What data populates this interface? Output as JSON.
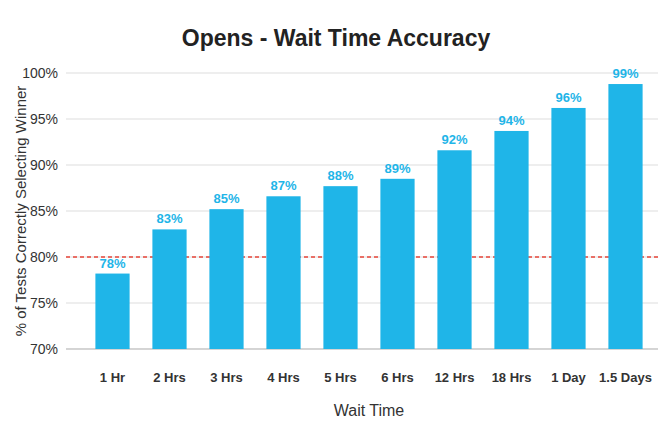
{
  "chart_data": {
    "type": "bar",
    "title": "Opens - Wait Time Accuracy",
    "x_label": "Wait Time",
    "y_label": "% of Tests Correctly Selecting Winner",
    "categories": [
      "1 Hr",
      "2 Hrs",
      "3 Hrs",
      "4 Hrs",
      "5 Hrs",
      "6 Hrs",
      "12 Hrs",
      "18 Hrs",
      "1 Day",
      "1.5 Days"
    ],
    "values": [
      78.2,
      83,
      85.2,
      86.6,
      87.7,
      88.5,
      91.6,
      93.7,
      96.2,
      98.8
    ],
    "value_labels": [
      "78%",
      "83%",
      "85%",
      "87%",
      "88%",
      "89%",
      "92%",
      "94%",
      "96%",
      "99%"
    ],
    "data_labels": true,
    "color": "#1fb5e8",
    "ylim": [
      70,
      100
    ],
    "yticks": [
      {
        "value": 70,
        "label": "70%"
      },
      {
        "value": 75,
        "label": "75%"
      },
      {
        "value": 80,
        "label": "80%"
      },
      {
        "value": 85,
        "label": "85%"
      },
      {
        "value": 90,
        "label": "90%"
      },
      {
        "value": 95,
        "label": "95%"
      },
      {
        "value": 100,
        "label": "100%"
      }
    ],
    "grid": true,
    "threshold": {
      "value": 80,
      "color": "#e8463a",
      "line_style": "dashed"
    }
  }
}
